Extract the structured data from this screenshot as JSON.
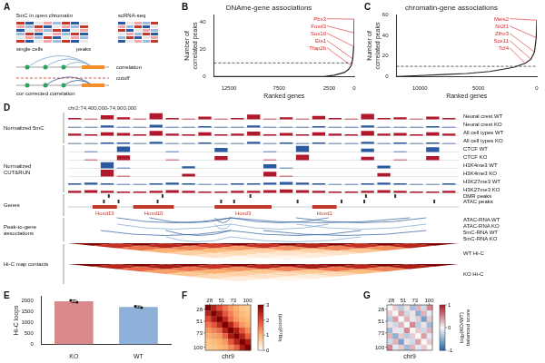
{
  "figure": {
    "panel_letters": [
      "A",
      "B",
      "C",
      "D",
      "E",
      "F",
      "G"
    ],
    "A": {
      "title_left": "5mC in open chromatin",
      "title_right": "scRNA-seq",
      "rows_label": "single cells",
      "cols_label": "peaks",
      "correlation": "correlation",
      "corrected": "cor corrected correlation",
      "cutoff": "cutoff"
    },
    "D": {
      "region": "chr2:74,400,000-74,900,000",
      "groups": [
        {
          "label": "Normalized 5mC",
          "tracks": [
            {
              "name": "Neural crest WT",
              "color": "#b2182b",
              "values": [
                0.2,
                0.1,
                0.6,
                0.3,
                0.1,
                0.9,
                0.2,
                0.1,
                0.4,
                0.1,
                0.2,
                0.7,
                0.1,
                0.3,
                0.1,
                0.5,
                0.2,
                0.1,
                0.8,
                0.2,
                0.3,
                0.1,
                0.4,
                0.2
              ]
            },
            {
              "name": "Neural crest KO",
              "color": "#2c5aa0",
              "values": [
                0.1,
                0.1,
                0.3,
                0.1,
                0.1,
                0.4,
                0.1,
                0.1,
                0.2,
                0.1,
                0.1,
                0.3,
                0.1,
                0.1,
                0.1,
                0.2,
                0.1,
                0.1,
                0.3,
                0.1,
                0.1,
                0.1,
                0.2,
                0.1
              ]
            },
            {
              "name": "All cell types WT",
              "color": "#b2182b",
              "values": [
                0.3,
                0.2,
                0.5,
                0.4,
                0.2,
                0.7,
                0.3,
                0.2,
                0.5,
                0.2,
                0.3,
                0.6,
                0.2,
                0.4,
                0.2,
                0.5,
                0.3,
                0.2,
                0.7,
                0.3,
                0.4,
                0.2,
                0.5,
                0.3
              ]
            },
            {
              "name": "All cell types KO",
              "color": "#2c5aa0",
              "values": [
                0.1,
                0.1,
                0.2,
                0.2,
                0.1,
                0.3,
                0.1,
                0.1,
                0.2,
                0.1,
                0.1,
                0.3,
                0.1,
                0.2,
                0.1,
                0.2,
                0.1,
                0.1,
                0.3,
                0.1,
                0.2,
                0.1,
                0.2,
                0.1
              ]
            }
          ]
        },
        {
          "label": "Normalized CUT&RUN",
          "tracks": [
            {
              "name": "CTCF WT",
              "color": "#2c5aa0",
              "values": [
                0.0,
                0.1,
                0.0,
                0.8,
                0.0,
                0.0,
                0.1,
                0.0,
                0.0,
                0.6,
                0.0,
                0.0,
                0.1,
                0.0,
                0.9,
                0.0,
                0.0,
                0.0,
                0.5,
                0.0,
                0.1,
                0.0,
                0.7,
                0.0
              ]
            },
            {
              "name": "CTCF KO",
              "color": "#b2182b",
              "values": [
                0.0,
                0.1,
                0.0,
                0.7,
                0.0,
                0.0,
                0.1,
                0.0,
                0.0,
                0.6,
                0.0,
                0.0,
                0.1,
                0.0,
                0.8,
                0.0,
                0.0,
                0.0,
                0.5,
                0.0,
                0.1,
                0.0,
                0.6,
                0.0
              ]
            },
            {
              "name": "H3K4me3 WT",
              "color": "#2c5aa0",
              "values": [
                0.0,
                0.0,
                0.9,
                0.1,
                0.0,
                0.0,
                0.0,
                0.3,
                0.0,
                0.0,
                0.0,
                0.0,
                0.6,
                0.1,
                0.0,
                0.0,
                0.0,
                0.0,
                0.0,
                0.4,
                0.0,
                0.0,
                0.0,
                0.0
              ]
            },
            {
              "name": "H3K4me3 KO",
              "color": "#b2182b",
              "values": [
                0.0,
                0.0,
                1.0,
                0.1,
                0.0,
                0.0,
                0.0,
                0.4,
                0.0,
                0.0,
                0.0,
                0.0,
                0.7,
                0.1,
                0.0,
                0.0,
                0.0,
                0.0,
                0.0,
                0.5,
                0.0,
                0.0,
                0.0,
                0.0
              ]
            },
            {
              "name": "H3K27me3 WT",
              "color": "#2c5aa0",
              "values": [
                0.2,
                0.3,
                0.2,
                0.1,
                0.1,
                0.2,
                0.3,
                0.2,
                0.1,
                0.1,
                0.2,
                0.2,
                0.3,
                0.4,
                0.3,
                0.2,
                0.1,
                0.1,
                0.2,
                0.3,
                0.2,
                0.1,
                0.1,
                0.2
              ]
            },
            {
              "name": "H3K27me3 KO",
              "color": "#b2182b",
              "values": [
                0.3,
                0.4,
                0.3,
                0.2,
                0.2,
                0.3,
                0.4,
                0.3,
                0.2,
                0.2,
                0.3,
                0.3,
                0.4,
                0.5,
                0.4,
                0.3,
                0.2,
                0.2,
                0.3,
                0.4,
                0.3,
                0.2,
                0.2,
                0.3
              ]
            }
          ]
        }
      ],
      "genes_label": "Genes",
      "peaks": [
        {
          "name": "DMR peaks",
          "positions": [
            2.5,
            5.8,
            11.2,
            18.3,
            20.1
          ]
        },
        {
          "name": "ATAC peaks",
          "positions": [
            2.2,
            3.1,
            5.5,
            9.4,
            10.2,
            14.1,
            16.8,
            18.2,
            22.5
          ]
        }
      ],
      "genes": [
        {
          "name": "Hoxd13",
          "start": 1.5,
          "end": 3
        },
        {
          "name": "Hoxd10",
          "start": 4,
          "end": 6.5
        },
        {
          "name": "Hoxd3",
          "start": 9,
          "end": 12.5
        },
        {
          "name": "Hoxd1",
          "start": 15,
          "end": 16.5
        }
      ],
      "arcs_label": "Peak-to-gene associations",
      "arcs": [
        {
          "name": "ATAC-RNA WT",
          "links": [
            [
              3,
              10
            ],
            [
              5,
              10
            ],
            [
              9,
              10
            ],
            [
              10,
              16
            ],
            [
              10,
              21
            ],
            [
              14,
              22
            ]
          ]
        },
        {
          "name": "ATAC-RNA KO",
          "links": [
            [
              3,
              10
            ],
            [
              9,
              10
            ],
            [
              10,
              16
            ],
            [
              14,
              22
            ]
          ]
        },
        {
          "name": "5mC-RNA WT",
          "links": [
            [
              2,
              10
            ],
            [
              6,
              10
            ],
            [
              10,
              18
            ],
            [
              12,
              22
            ]
          ]
        },
        {
          "name": "5mC-RNA KO",
          "links": [
            [
              6,
              10
            ],
            [
              10,
              18
            ]
          ]
        }
      ],
      "hic_label": "Hi-C map contacts",
      "hic": [
        {
          "name": "WT Hi-C",
          "cells": [
            [
              3.0,
              2.5,
              2.0,
              1.6,
              1.3,
              1.1,
              0.9,
              0.8
            ],
            [
              2.5,
              3.0,
              2.6,
              1.9,
              1.5,
              1.2,
              1.0,
              0.9
            ],
            [
              2.0,
              2.6,
              3.0,
              2.4,
              1.7,
              1.3,
              1.1,
              1.0
            ],
            [
              1.6,
              1.9,
              2.4,
              3.0,
              2.5,
              1.8,
              1.3,
              1.1
            ],
            [
              1.3,
              1.5,
              1.7,
              2.5,
              3.0,
              2.6,
              1.9,
              1.4
            ],
            [
              1.1,
              1.2,
              1.3,
              1.8,
              2.6,
              3.0,
              2.5,
              1.8
            ],
            [
              0.9,
              1.0,
              1.1,
              1.3,
              1.9,
              2.5,
              3.0,
              2.6
            ],
            [
              0.8,
              0.9,
              1.0,
              1.1,
              1.4,
              1.8,
              2.6,
              3.0
            ]
          ]
        },
        {
          "name": "KO Hi-C",
          "cells": [
            [
              3.0,
              2.6,
              2.1,
              1.7,
              1.4,
              1.2,
              1.0,
              0.8
            ],
            [
              2.6,
              3.0,
              2.7,
              2.0,
              1.6,
              1.3,
              1.1,
              0.9
            ],
            [
              2.1,
              2.7,
              3.0,
              2.5,
              1.8,
              1.4,
              1.2,
              1.0
            ],
            [
              1.7,
              2.0,
              2.5,
              3.0,
              2.6,
              1.9,
              1.4,
              1.2
            ],
            [
              1.4,
              1.6,
              1.8,
              2.6,
              3.0,
              2.7,
              2.0,
              1.5
            ],
            [
              1.2,
              1.3,
              1.4,
              1.9,
              2.7,
              3.0,
              2.6,
              1.9
            ],
            [
              1.0,
              1.1,
              1.2,
              1.4,
              2.0,
              2.6,
              3.0,
              2.7
            ],
            [
              0.8,
              0.9,
              1.0,
              1.2,
              1.5,
              1.9,
              2.7,
              3.0
            ]
          ]
        }
      ]
    },
    "F": {
      "axis_label": "chr9",
      "lim": [
        20,
        106
      ],
      "ticks": [
        28,
        51,
        73,
        100
      ],
      "colorbar": {
        "label": "log₁₀(count)",
        "range": [
          0,
          3
        ],
        "ticks": [
          0,
          1,
          2,
          3
        ]
      },
      "cells": [
        [
          3.0,
          2.5,
          2.0,
          1.6,
          1.3,
          1.1,
          0.9,
          0.8
        ],
        [
          2.5,
          3.0,
          2.6,
          1.9,
          1.5,
          1.2,
          1.0,
          0.9
        ],
        [
          2.0,
          2.6,
          3.0,
          2.4,
          1.7,
          1.3,
          1.1,
          1.0
        ],
        [
          1.6,
          1.9,
          2.4,
          3.0,
          2.5,
          1.8,
          1.3,
          1.1
        ],
        [
          1.3,
          1.5,
          1.7,
          2.5,
          3.0,
          2.6,
          1.9,
          1.4
        ],
        [
          1.1,
          1.2,
          1.3,
          1.8,
          2.6,
          3.0,
          2.5,
          1.8
        ],
        [
          0.9,
          1.0,
          1.1,
          1.3,
          1.9,
          2.5,
          3.0,
          2.6
        ],
        [
          0.8,
          0.9,
          1.0,
          1.1,
          1.4,
          1.8,
          2.6,
          3.0
        ]
      ]
    },
    "G": {
      "axis_label": "chr9",
      "lim": [
        20,
        106
      ],
      "ticks": [
        28,
        51,
        73,
        100
      ],
      "colorbar": {
        "label": "log₂(KO/WT) balanced score",
        "range": [
          -1,
          1
        ],
        "ticks": [
          -1,
          0,
          1
        ]
      },
      "cells": [
        [
          0,
          0.2,
          -0.3,
          0.1,
          -0.4,
          0.3,
          -0.2,
          0.5
        ],
        [
          0.2,
          0,
          0.4,
          -0.2,
          0.1,
          -0.5,
          0.3,
          -0.1
        ],
        [
          -0.3,
          0.4,
          0,
          0.3,
          -0.1,
          0.2,
          -0.6,
          0.2
        ],
        [
          0.1,
          -0.2,
          0.3,
          0,
          0.5,
          -0.3,
          0.1,
          -0.4
        ],
        [
          -0.4,
          0.1,
          -0.1,
          0.5,
          0,
          0.2,
          -0.2,
          0.3
        ],
        [
          0.3,
          -0.5,
          0.2,
          -0.3,
          0.2,
          0,
          0.4,
          -0.1
        ],
        [
          -0.2,
          0.3,
          -0.6,
          0.1,
          -0.2,
          0.4,
          0,
          0.2
        ],
        [
          0.5,
          -0.1,
          0.2,
          -0.4,
          0.3,
          -0.1,
          0.2,
          0
        ]
      ]
    }
  },
  "chart_data": [
    {
      "type": "line",
      "title": "DNAme-gene associations",
      "x_label": "Ranked genes",
      "y_label": "Number of correlated peaks",
      "x": [
        14000,
        12000,
        10000,
        8000,
        6000,
        4000,
        3000,
        2000,
        1500,
        1000,
        600,
        300,
        150,
        50,
        10,
        0
      ],
      "values": [
        0,
        0,
        0,
        0,
        0,
        0,
        0,
        1,
        2,
        3,
        5,
        8,
        13,
        22,
        32,
        42
      ],
      "color": "#222222",
      "xlim": [
        14000,
        0
      ],
      "xticks": [
        12500,
        7500,
        2500,
        0
      ],
      "ylim": [
        0,
        45
      ],
      "yticks": [
        0,
        20,
        40
      ],
      "cutoff": 10,
      "grid": false,
      "annotations": [
        {
          "label": "Pbx3",
          "x": 0,
          "y": 42
        },
        {
          "label": "Foxd3",
          "x": 10,
          "y": 32
        },
        {
          "label": "Sox10",
          "x": 50,
          "y": 22
        },
        {
          "label": "Ets1",
          "x": 150,
          "y": 13
        },
        {
          "label": "Tfap2b",
          "x": 300,
          "y": 8
        }
      ]
    },
    {
      "type": "line",
      "title": "chromatin-gene associations",
      "x_label": "Ranked genes",
      "y_label": "Number of correlated peaks",
      "x": [
        12000,
        10000,
        8000,
        6000,
        4000,
        3000,
        2000,
        1000,
        500,
        200,
        50,
        0
      ],
      "values": [
        0,
        1,
        2,
        3,
        5,
        7,
        9,
        13,
        17,
        24,
        38,
        55
      ],
      "color": "#222222",
      "xlim": [
        12000,
        0
      ],
      "xticks": [
        10000,
        5000,
        0
      ],
      "ylim": [
        0,
        60
      ],
      "yticks": [
        0,
        20,
        40,
        60
      ],
      "cutoff": 10,
      "grid": false,
      "annotations": [
        {
          "label": "Meis2",
          "x": 0,
          "y": 55
        },
        {
          "label": "Nr2f1",
          "x": 50,
          "y": 38
        },
        {
          "label": "Zfhx3",
          "x": 200,
          "y": 24
        },
        {
          "label": "Sox11",
          "x": 500,
          "y": 17
        },
        {
          "label": "Tcf4",
          "x": 1000,
          "y": 13
        }
      ]
    },
    {
      "type": "bar",
      "categories": [
        "KO",
        "WT"
      ],
      "values": [
        1950,
        1700
      ],
      "colors": [
        "#d9898a",
        "#8fb1d9"
      ],
      "errors": [
        60,
        45
      ],
      "points": [
        [
          1990,
          1910
        ],
        [
          1730,
          1670
        ]
      ],
      "y_label": "Hi-C loops",
      "ylim": [
        0,
        2200
      ],
      "yticks": [
        0,
        500,
        1000,
        1500,
        2000
      ],
      "grid": false
    }
  ]
}
